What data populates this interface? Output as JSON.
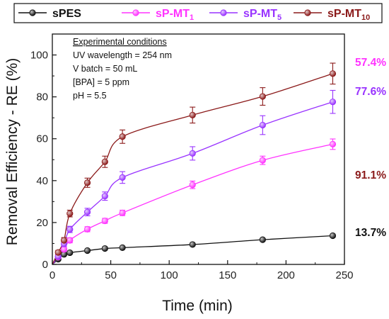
{
  "chart_data": {
    "type": "line",
    "xlabel": "Time (min)",
    "ylabel": "Removal Efficiency - RE (%)",
    "xlim": [
      0,
      250
    ],
    "ylim": [
      0,
      110
    ],
    "xticks": [
      "0",
      "50",
      "100",
      "150",
      "200",
      "250"
    ],
    "yticks": [
      "0",
      "20",
      "40",
      "60",
      "80",
      "100"
    ],
    "grid": false,
    "legend_position": "top",
    "legend": [
      {
        "base": "sPES",
        "sub": ""
      },
      {
        "base": "sP-MT",
        "sub": "1"
      },
      {
        "base": "sP-MT",
        "sub": "5"
      },
      {
        "base": "sP-MT",
        "sub": "10"
      }
    ],
    "conditions": {
      "title": "Experimental conditions",
      "lines": [
        "UV wavelength = 254 nm",
        "V batch = 50 mL",
        "[BPA] = 5 ppm",
        "pH = 5.5"
      ]
    },
    "x": [
      0,
      5,
      10,
      15,
      30,
      45,
      60,
      120,
      180,
      240
    ],
    "series": [
      {
        "name": "sPES",
        "color": "#111111",
        "values": [
          0,
          2.5,
          4.8,
          5.6,
          6.6,
          7.6,
          8.0,
          9.5,
          11.8,
          13.7
        ],
        "errors": [
          0,
          0.4,
          0.5,
          0.5,
          0.5,
          0.5,
          0.5,
          0.6,
          0.6,
          0.7
        ],
        "end_label": "13.7%"
      },
      {
        "name": "sP-MT1",
        "color": "#ff33ff",
        "values": [
          0,
          3.5,
          7.2,
          11.5,
          16.8,
          20.8,
          24.6,
          38.0,
          49.7,
          57.4
        ],
        "errors": [
          0,
          0.8,
          1.0,
          1.2,
          1.2,
          1.2,
          1.3,
          1.8,
          2.0,
          2.5
        ],
        "end_label": "57.4%"
      },
      {
        "name": "sP-MT5",
        "color": "#9933ff",
        "values": [
          0,
          3.8,
          9.8,
          16.7,
          25.0,
          32.6,
          41.5,
          53.0,
          66.5,
          77.6
        ],
        "errors": [
          0,
          1.0,
          1.3,
          1.5,
          1.8,
          2.0,
          2.8,
          3.2,
          4.5,
          5.5
        ],
        "end_label": "77.6%"
      },
      {
        "name": "sP-MT10",
        "color": "#8b1a1a",
        "values": [
          0,
          5.7,
          11.5,
          24.3,
          39.0,
          49.0,
          61.0,
          71.3,
          80.2,
          91.1
        ],
        "errors": [
          0,
          1.0,
          1.3,
          1.6,
          2.2,
          2.7,
          3.2,
          3.8,
          4.2,
          5.0
        ],
        "end_label": "91.1%"
      }
    ]
  }
}
